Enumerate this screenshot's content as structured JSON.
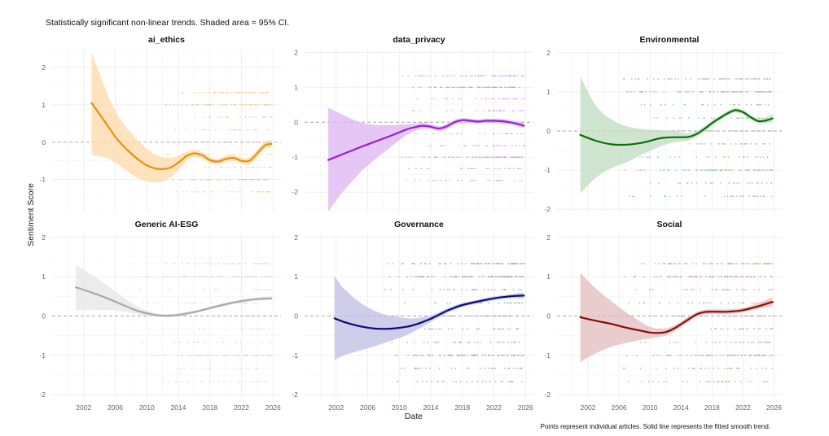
{
  "chart_data": {
    "type": "line",
    "subtitle": "Statistically significant non-linear trends. Shaded area = 95% CI.",
    "xlabel": "Date",
    "ylabel": "Sentiment Score",
    "caption": "Points represent individual articles. Solid line represents the fitted smooth trend.",
    "x_ticks": [
      "2002",
      "2006",
      "2010",
      "2014",
      "2018",
      "2022",
      "2026"
    ],
    "xlim": [
      1998,
      2027
    ],
    "grid": true,
    "reference_line": 0,
    "panels": [
      {
        "title": "ai_ethics",
        "color": "#E8900E",
        "band_color": "#FDD9A8",
        "ylim": [
          -1.9,
          2.5
        ],
        "y_ticks": [
          "2",
          "1",
          "0",
          "-1"
        ],
        "x": [
          2003,
          2004,
          2005,
          2006,
          2007,
          2008,
          2009,
          2010,
          2011,
          2012,
          2013,
          2014,
          2015,
          2016,
          2017,
          2018,
          2019,
          2020,
          2021,
          2022,
          2023,
          2024,
          2025,
          2025.8
        ],
        "fit": [
          1.05,
          0.75,
          0.45,
          0.15,
          -0.1,
          -0.3,
          -0.48,
          -0.62,
          -0.7,
          -0.72,
          -0.68,
          -0.55,
          -0.38,
          -0.3,
          -0.35,
          -0.48,
          -0.52,
          -0.45,
          -0.42,
          -0.5,
          -0.5,
          -0.3,
          -0.08,
          -0.05
        ],
        "lower": [
          -0.35,
          -0.38,
          -0.42,
          -0.55,
          -0.7,
          -0.85,
          -0.98,
          -1.05,
          -1.08,
          -1.05,
          -0.95,
          -0.75,
          -0.5,
          -0.4,
          -0.44,
          -0.56,
          -0.6,
          -0.53,
          -0.5,
          -0.58,
          -0.6,
          -0.4,
          -0.17,
          -0.15
        ],
        "upper": [
          2.4,
          1.85,
          1.3,
          0.85,
          0.5,
          0.25,
          0.02,
          -0.18,
          -0.32,
          -0.4,
          -0.42,
          -0.36,
          -0.26,
          -0.2,
          -0.26,
          -0.4,
          -0.44,
          -0.37,
          -0.34,
          -0.42,
          -0.4,
          -0.2,
          0.02,
          0.05
        ],
        "point_levels": [
          1.33,
          1.0,
          0.67,
          0.33,
          0,
          -0.33,
          -0.67,
          -1.0,
          -1.33
        ],
        "points_start": 2012
      },
      {
        "title": "data_privacy",
        "color": "#9B1FD4",
        "band_color": "#DDB3F0",
        "ylim": [
          -2.6,
          2.1
        ],
        "y_ticks": [
          "2",
          "1",
          "0",
          "-1",
          "-2"
        ],
        "x": [
          2001,
          2003,
          2005,
          2007,
          2009,
          2011,
          2012,
          2013,
          2014,
          2015,
          2016,
          2017,
          2018,
          2019,
          2020,
          2021,
          2022,
          2023,
          2024,
          2025,
          2025.8
        ],
        "fit": [
          -1.08,
          -0.9,
          -0.72,
          -0.55,
          -0.38,
          -0.2,
          -0.14,
          -0.1,
          -0.13,
          -0.18,
          -0.12,
          0.0,
          0.06,
          0.04,
          0.02,
          0.04,
          0.04,
          0.03,
          0.0,
          -0.05,
          -0.1
        ],
        "lower": [
          -2.55,
          -1.95,
          -1.45,
          -1.05,
          -0.7,
          -0.35,
          -0.25,
          -0.19,
          -0.2,
          -0.25,
          -0.2,
          -0.07,
          0.0,
          -0.02,
          -0.04,
          -0.02,
          -0.02,
          -0.04,
          -0.06,
          -0.12,
          -0.18
        ],
        "upper": [
          0.42,
          0.2,
          0.0,
          -0.08,
          -0.08,
          -0.06,
          -0.04,
          -0.02,
          -0.06,
          -0.11,
          -0.05,
          0.07,
          0.12,
          0.1,
          0.08,
          0.1,
          0.1,
          0.1,
          0.06,
          0.02,
          -0.02
        ],
        "point_levels": [
          1.33,
          1.0,
          0.67,
          0.33,
          0,
          -0.33,
          -0.67,
          -1.0,
          -1.33,
          -1.67
        ],
        "points_start": 2010
      },
      {
        "title": "Environmental",
        "color": "#0B6E0B",
        "band_color": "#BFDCBF",
        "ylim": [
          -2.1,
          2.1
        ],
        "y_ticks": [
          "2",
          "1",
          "0",
          "-1",
          "-2"
        ],
        "x": [
          2001,
          2003,
          2005,
          2007,
          2009,
          2011,
          2012,
          2013,
          2014,
          2015,
          2016,
          2017,
          2018,
          2019,
          2020,
          2021,
          2022,
          2023,
          2024,
          2025,
          2025.8
        ],
        "fit": [
          -0.1,
          -0.25,
          -0.34,
          -0.35,
          -0.3,
          -0.2,
          -0.17,
          -0.16,
          -0.16,
          -0.15,
          -0.08,
          0.05,
          0.2,
          0.33,
          0.45,
          0.53,
          0.48,
          0.35,
          0.25,
          0.27,
          0.32
        ],
        "lower": [
          -1.6,
          -1.2,
          -0.95,
          -0.8,
          -0.6,
          -0.42,
          -0.35,
          -0.3,
          -0.27,
          -0.24,
          -0.15,
          -0.02,
          0.13,
          0.27,
          0.39,
          0.47,
          0.42,
          0.29,
          0.19,
          0.2,
          0.22
        ],
        "upper": [
          1.4,
          0.65,
          0.3,
          0.12,
          0.05,
          0.02,
          0.01,
          0.0,
          -0.04,
          -0.06,
          0.0,
          0.12,
          0.27,
          0.39,
          0.51,
          0.59,
          0.54,
          0.41,
          0.32,
          0.35,
          0.44
        ],
        "point_levels": [
          1.33,
          1.0,
          0.67,
          0.33,
          0,
          -0.33,
          -0.67,
          -1.0,
          -1.33,
          -1.67
        ],
        "points_start": 2006
      },
      {
        "title": "Generic AI-ESG",
        "color": "#A8A8A8",
        "band_color": "#E6E6E6",
        "ylim": [
          -2.1,
          2.1
        ],
        "y_ticks": [
          "2",
          "1",
          "0",
          "-1",
          "-2"
        ],
        "x": [
          2001,
          2003,
          2005,
          2007,
          2009,
          2011,
          2012,
          2013,
          2014,
          2016,
          2018,
          2020,
          2022,
          2024,
          2025.8
        ],
        "fit": [
          0.73,
          0.6,
          0.45,
          0.28,
          0.12,
          0.03,
          0.01,
          0.01,
          0.03,
          0.1,
          0.2,
          0.3,
          0.38,
          0.43,
          0.45
        ],
        "lower": [
          0.15,
          0.15,
          0.15,
          0.12,
          0.04,
          -0.02,
          -0.03,
          -0.03,
          -0.01,
          0.06,
          0.16,
          0.26,
          0.34,
          0.39,
          0.4
        ],
        "upper": [
          1.3,
          1.05,
          0.78,
          0.48,
          0.22,
          0.08,
          0.05,
          0.05,
          0.07,
          0.14,
          0.24,
          0.34,
          0.42,
          0.47,
          0.5
        ],
        "point_levels": [
          1.33,
          1.0,
          0.67,
          0.33,
          0,
          -0.33,
          -0.67,
          -1.0,
          -1.33,
          -1.67
        ],
        "points_start": 2008
      },
      {
        "title": "Governance",
        "color": "#0A0A80",
        "band_color": "#BDBDE3",
        "ylim": [
          -2.1,
          2.1
        ],
        "y_ticks": [
          "2",
          "1",
          "0",
          "-1",
          "-2"
        ],
        "x": [
          2001.8,
          2003,
          2005,
          2007,
          2009,
          2011,
          2012,
          2013,
          2014,
          2015,
          2016,
          2017,
          2018,
          2020,
          2022,
          2024,
          2025.8
        ],
        "fit": [
          -0.06,
          -0.15,
          -0.26,
          -0.32,
          -0.32,
          -0.27,
          -0.22,
          -0.15,
          -0.07,
          0.03,
          0.13,
          0.21,
          0.28,
          0.37,
          0.45,
          0.5,
          0.52
        ],
        "lower": [
          -1.12,
          -1.0,
          -0.88,
          -0.76,
          -0.63,
          -0.48,
          -0.38,
          -0.27,
          -0.15,
          -0.04,
          0.07,
          0.15,
          0.23,
          0.32,
          0.4,
          0.45,
          0.45
        ],
        "upper": [
          1.02,
          0.7,
          0.35,
          0.12,
          0.0,
          -0.06,
          -0.06,
          -0.03,
          0.01,
          0.1,
          0.19,
          0.27,
          0.33,
          0.42,
          0.5,
          0.55,
          0.6
        ],
        "point_levels": [
          1.33,
          1.0,
          0.67,
          0.33,
          0,
          -0.33,
          -0.67,
          -1.0,
          -1.33,
          -1.67
        ],
        "points_start": 2008
      },
      {
        "title": "Social",
        "color": "#8B0A0A",
        "band_color": "#E2BCBC",
        "ylim": [
          -2.1,
          2.1
        ],
        "y_ticks": [
          "2",
          "1",
          "0",
          "-1",
          "-2"
        ],
        "x": [
          2001,
          2003,
          2005,
          2007,
          2009,
          2010,
          2011,
          2012,
          2013,
          2014,
          2015,
          2016,
          2017,
          2018,
          2020,
          2022,
          2024,
          2025.8
        ],
        "fit": [
          -0.03,
          -0.12,
          -0.2,
          -0.3,
          -0.38,
          -0.42,
          -0.43,
          -0.41,
          -0.33,
          -0.21,
          -0.08,
          0.04,
          0.1,
          0.11,
          0.11,
          0.15,
          0.25,
          0.36
        ],
        "lower": [
          -1.17,
          -0.95,
          -0.78,
          -0.68,
          -0.6,
          -0.57,
          -0.54,
          -0.5,
          -0.41,
          -0.28,
          -0.15,
          -0.02,
          0.04,
          0.05,
          0.05,
          0.09,
          0.18,
          0.24
        ],
        "upper": [
          1.1,
          0.7,
          0.38,
          0.08,
          -0.17,
          -0.27,
          -0.32,
          -0.32,
          -0.25,
          -0.14,
          -0.01,
          0.1,
          0.16,
          0.17,
          0.17,
          0.21,
          0.33,
          0.48
        ],
        "point_levels": [
          1.33,
          1.0,
          0.67,
          0.33,
          0,
          -0.33,
          -0.67,
          -1.0,
          -1.33,
          -1.67
        ],
        "points_start": 2006
      }
    ]
  }
}
